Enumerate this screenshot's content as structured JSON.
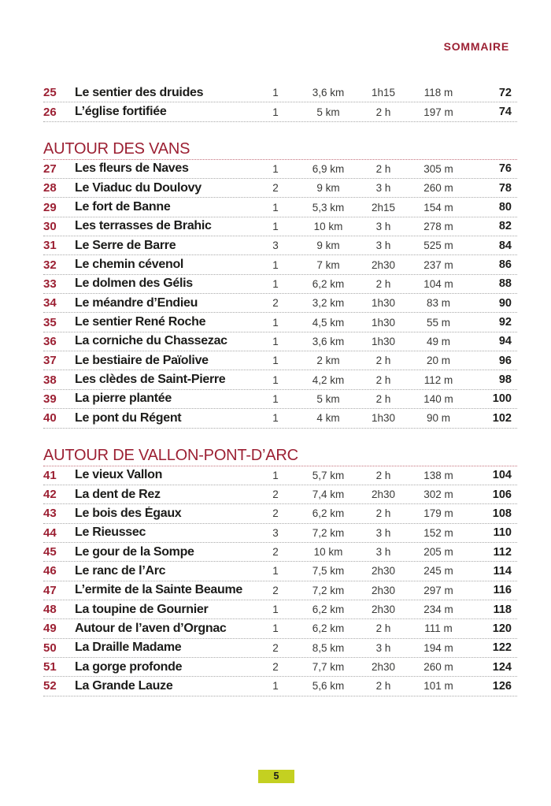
{
  "page": {
    "header": "SOMMAIRE",
    "footer_page_number": "5",
    "colors": {
      "accent_red": "#9c2033",
      "badge_green": "#c4d021",
      "text_dark": "#1c1c1a",
      "text_gray": "#3a3a38",
      "dotted_line": "#a9a9a9"
    }
  },
  "table": {
    "sections": [
      {
        "title": null,
        "rows": [
          {
            "num": "25",
            "name": "Le sentier des druides",
            "difficulty": "1",
            "distance": "3,6 km",
            "time": "1h15",
            "elevation": "118 m",
            "page": "72"
          },
          {
            "num": "26",
            "name": "L’église fortifiée",
            "difficulty": "1",
            "distance": "5 km",
            "time": "2 h",
            "elevation": "197 m",
            "page": "74"
          }
        ]
      },
      {
        "title": "AUTOUR DES VANS",
        "rows": [
          {
            "num": "27",
            "name": "Les fleurs de Naves",
            "difficulty": "1",
            "distance": "6,9 km",
            "time": "2 h",
            "elevation": "305 m",
            "page": "76"
          },
          {
            "num": "28",
            "name": "Le Viaduc du Doulovy",
            "difficulty": "2",
            "distance": "9 km",
            "time": "3 h",
            "elevation": "260 m",
            "page": "78"
          },
          {
            "num": "29",
            "name": "Le fort de Banne",
            "difficulty": "1",
            "distance": "5,3 km",
            "time": "2h15",
            "elevation": "154 m",
            "page": "80"
          },
          {
            "num": "30",
            "name": "Les terrasses de Brahic",
            "difficulty": "1",
            "distance": "10 km",
            "time": "3 h",
            "elevation": "278 m",
            "page": "82"
          },
          {
            "num": "31",
            "name": "Le Serre de Barre",
            "difficulty": "3",
            "distance": "9 km",
            "time": "3 h",
            "elevation": "525 m",
            "page": "84"
          },
          {
            "num": "32",
            "name": "Le chemin cévenol",
            "difficulty": "1",
            "distance": "7 km",
            "time": "2h30",
            "elevation": "237 m",
            "page": "86"
          },
          {
            "num": "33",
            "name": "Le dolmen des Gélis",
            "difficulty": "1",
            "distance": "6,2 km",
            "time": "2 h",
            "elevation": "104 m",
            "page": "88"
          },
          {
            "num": "34",
            "name": "Le méandre d’Endieu",
            "difficulty": "2",
            "distance": "3,2 km",
            "time": "1h30",
            "elevation": "83 m",
            "page": "90"
          },
          {
            "num": "35",
            "name": "Le sentier René Roche",
            "difficulty": "1",
            "distance": "4,5 km",
            "time": "1h30",
            "elevation": "55 m",
            "page": "92"
          },
          {
            "num": "36",
            "name": "La corniche du Chassezac",
            "difficulty": "1",
            "distance": "3,6 km",
            "time": "1h30",
            "elevation": "49 m",
            "page": "94"
          },
          {
            "num": "37",
            "name": "Le bestiaire de Païolive",
            "difficulty": "1",
            "distance": "2 km",
            "time": "2 h",
            "elevation": "20 m",
            "page": "96"
          },
          {
            "num": "38",
            "name": "Les clèdes de Saint-Pierre",
            "difficulty": "1",
            "distance": "4,2 km",
            "time": "2 h",
            "elevation": "112 m",
            "page": "98"
          },
          {
            "num": "39",
            "name": "La pierre plantée",
            "difficulty": "1",
            "distance": "5 km",
            "time": "2 h",
            "elevation": "140 m",
            "page": "100"
          },
          {
            "num": "40",
            "name": "Le pont du Régent",
            "difficulty": "1",
            "distance": "4 km",
            "time": "1h30",
            "elevation": "90 m",
            "page": "102"
          }
        ]
      },
      {
        "title": "AUTOUR DE VALLON-PONT-D’ARC",
        "rows": [
          {
            "num": "41",
            "name": "Le vieux Vallon",
            "difficulty": "1",
            "distance": "5,7 km",
            "time": "2 h",
            "elevation": "138 m",
            "page": "104"
          },
          {
            "num": "42",
            "name": "La dent de Rez",
            "difficulty": "2",
            "distance": "7,4 km",
            "time": "2h30",
            "elevation": "302 m",
            "page": "106"
          },
          {
            "num": "43",
            "name": "Le bois des Égaux",
            "difficulty": "2",
            "distance": "6,2 km",
            "time": "2 h",
            "elevation": "179 m",
            "page": "108"
          },
          {
            "num": "44",
            "name": "Le Rieussec",
            "difficulty": "3",
            "distance": "7,2 km",
            "time": "3 h",
            "elevation": "152 m",
            "page": "110"
          },
          {
            "num": "45",
            "name": "Le gour de la Sompe",
            "difficulty": "2",
            "distance": "10 km",
            "time": "3 h",
            "elevation": "205 m",
            "page": "112"
          },
          {
            "num": "46",
            "name": "Le ranc de l’Arc",
            "difficulty": "1",
            "distance": "7,5 km",
            "time": "2h30",
            "elevation": "245 m",
            "page": "114"
          },
          {
            "num": "47",
            "name": "L’ermite de la Sainte Beaume",
            "difficulty": "2",
            "distance": "7,2 km",
            "time": "2h30",
            "elevation": "297 m",
            "page": "116"
          },
          {
            "num": "48",
            "name": "La toupine de Gournier",
            "difficulty": "1",
            "distance": "6,2 km",
            "time": "2h30",
            "elevation": "234 m",
            "page": "118"
          },
          {
            "num": "49",
            "name": "Autour de l’aven d’Orgnac",
            "difficulty": "1",
            "distance": "6,2 km",
            "time": "2 h",
            "elevation": "111 m",
            "page": "120"
          },
          {
            "num": "50",
            "name": "La Draille Madame",
            "difficulty": "2",
            "distance": "8,5 km",
            "time": "3 h",
            "elevation": "194 m",
            "page": "122"
          },
          {
            "num": "51",
            "name": "La gorge profonde",
            "difficulty": "2",
            "distance": "7,7 km",
            "time": "2h30",
            "elevation": "260 m",
            "page": "124"
          },
          {
            "num": "52",
            "name": "La Grande Lauze",
            "difficulty": "1",
            "distance": "5,6 km",
            "time": "2 h",
            "elevation": "101 m",
            "page": "126"
          }
        ]
      }
    ]
  }
}
